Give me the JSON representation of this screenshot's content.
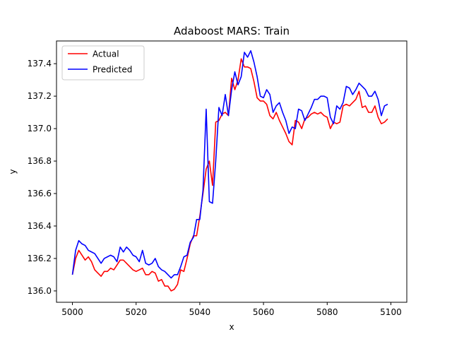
{
  "chart_data": {
    "type": "line",
    "title": "Adaboost MARS: Train",
    "xlabel": "x",
    "ylabel": "y",
    "xlim": [
      4995,
      5105
    ],
    "ylim": [
      135.93,
      137.54
    ],
    "xticks": [
      5000,
      5020,
      5040,
      5060,
      5080,
      5100
    ],
    "yticks": [
      136.0,
      136.2,
      136.4,
      136.6,
      136.8,
      137.0,
      137.2,
      137.4
    ],
    "ytick_labels": [
      "136.0",
      "136.2",
      "136.4",
      "136.6",
      "136.8",
      "137.0",
      "137.2",
      "137.4"
    ],
    "legend_position": "top-left",
    "grid": false,
    "series": [
      {
        "name": "Actual",
        "color": "#ff0000",
        "x": [
          5000,
          5001,
          5002,
          5003,
          5004,
          5005,
          5006,
          5007,
          5008,
          5009,
          5010,
          5011,
          5012,
          5013,
          5014,
          5015,
          5016,
          5017,
          5018,
          5019,
          5020,
          5021,
          5022,
          5023,
          5024,
          5025,
          5026,
          5027,
          5028,
          5029,
          5030,
          5031,
          5032,
          5033,
          5034,
          5035,
          5036,
          5037,
          5038,
          5039,
          5040,
          5041,
          5042,
          5043,
          5044,
          5045,
          5046,
          5047,
          5048,
          5049,
          5050,
          5051,
          5052,
          5053,
          5054,
          5055,
          5056,
          5057,
          5058,
          5059,
          5060,
          5061,
          5062,
          5063,
          5064,
          5065,
          5066,
          5067,
          5068,
          5069,
          5070,
          5071,
          5072,
          5073,
          5074,
          5075,
          5076,
          5077,
          5078,
          5079,
          5080,
          5081,
          5082,
          5083,
          5084,
          5085,
          5086,
          5087,
          5088,
          5089,
          5090,
          5091,
          5092,
          5093,
          5094,
          5095,
          5096,
          5097,
          5098,
          5099
        ],
        "values": [
          136.1,
          136.2,
          136.25,
          136.22,
          136.19,
          136.21,
          136.18,
          136.13,
          136.11,
          136.09,
          136.12,
          136.12,
          136.14,
          136.13,
          136.16,
          136.19,
          136.19,
          136.17,
          136.15,
          136.13,
          136.12,
          136.13,
          136.14,
          136.1,
          136.1,
          136.12,
          136.11,
          136.06,
          136.07,
          136.03,
          136.03,
          136.0,
          136.01,
          136.04,
          136.13,
          136.12,
          136.2,
          136.29,
          136.34,
          136.34,
          136.46,
          136.6,
          136.75,
          136.8,
          136.65,
          137.04,
          137.05,
          137.09,
          137.1,
          137.08,
          137.31,
          137.24,
          137.3,
          137.43,
          137.38,
          137.38,
          137.37,
          137.29,
          137.19,
          137.17,
          137.17,
          137.15,
          137.08,
          137.06,
          137.1,
          137.05,
          137.01,
          136.97,
          136.92,
          136.9,
          137.05,
          137.04,
          137.0,
          137.06,
          137.07,
          137.09,
          137.1,
          137.09,
          137.1,
          137.08,
          137.07,
          137.0,
          137.04,
          137.03,
          137.04,
          137.14,
          137.15,
          137.14,
          137.16,
          137.18,
          137.23,
          137.13,
          137.14,
          137.1,
          137.1,
          137.14,
          137.07,
          137.03,
          137.04,
          137.06
        ]
      },
      {
        "name": "Predicted",
        "color": "#0000ff",
        "x": [
          5000,
          5001,
          5002,
          5003,
          5004,
          5005,
          5006,
          5007,
          5008,
          5009,
          5010,
          5011,
          5012,
          5013,
          5014,
          5015,
          5016,
          5017,
          5018,
          5019,
          5020,
          5021,
          5022,
          5023,
          5024,
          5025,
          5026,
          5027,
          5028,
          5029,
          5030,
          5031,
          5032,
          5033,
          5034,
          5035,
          5036,
          5037,
          5038,
          5039,
          5040,
          5041,
          5042,
          5043,
          5044,
          5045,
          5046,
          5047,
          5048,
          5049,
          5050,
          5051,
          5052,
          5053,
          5054,
          5055,
          5056,
          5057,
          5058,
          5059,
          5060,
          5061,
          5062,
          5063,
          5064,
          5065,
          5066,
          5067,
          5068,
          5069,
          5070,
          5071,
          5072,
          5073,
          5074,
          5075,
          5076,
          5077,
          5078,
          5079,
          5080,
          5081,
          5082,
          5083,
          5084,
          5085,
          5086,
          5087,
          5088,
          5089,
          5090,
          5091,
          5092,
          5093,
          5094,
          5095,
          5096,
          5097,
          5098,
          5099
        ],
        "values": [
          136.1,
          136.25,
          136.31,
          136.29,
          136.28,
          136.25,
          136.24,
          136.23,
          136.2,
          136.17,
          136.2,
          136.21,
          136.22,
          136.21,
          136.18,
          136.27,
          136.24,
          136.27,
          136.25,
          136.22,
          136.21,
          136.18,
          136.25,
          136.17,
          136.16,
          136.17,
          136.2,
          136.15,
          136.13,
          136.12,
          136.1,
          136.08,
          136.1,
          136.1,
          136.15,
          136.21,
          136.22,
          136.3,
          136.33,
          136.44,
          136.44,
          136.62,
          137.12,
          136.55,
          136.54,
          136.8,
          137.13,
          137.08,
          137.21,
          137.08,
          137.24,
          137.35,
          137.27,
          137.32,
          137.47,
          137.44,
          137.48,
          137.41,
          137.32,
          137.2,
          137.19,
          137.24,
          137.21,
          137.1,
          137.14,
          137.16,
          137.1,
          137.05,
          136.97,
          137.01,
          137.0,
          137.12,
          137.11,
          137.05,
          137.09,
          137.13,
          137.18,
          137.18,
          137.2,
          137.2,
          137.19,
          137.07,
          137.03,
          137.14,
          137.12,
          137.16,
          137.26,
          137.25,
          137.21,
          137.24,
          137.28,
          137.26,
          137.24,
          137.2,
          137.2,
          137.23,
          137.18,
          137.08,
          137.14,
          137.15
        ]
      }
    ]
  }
}
